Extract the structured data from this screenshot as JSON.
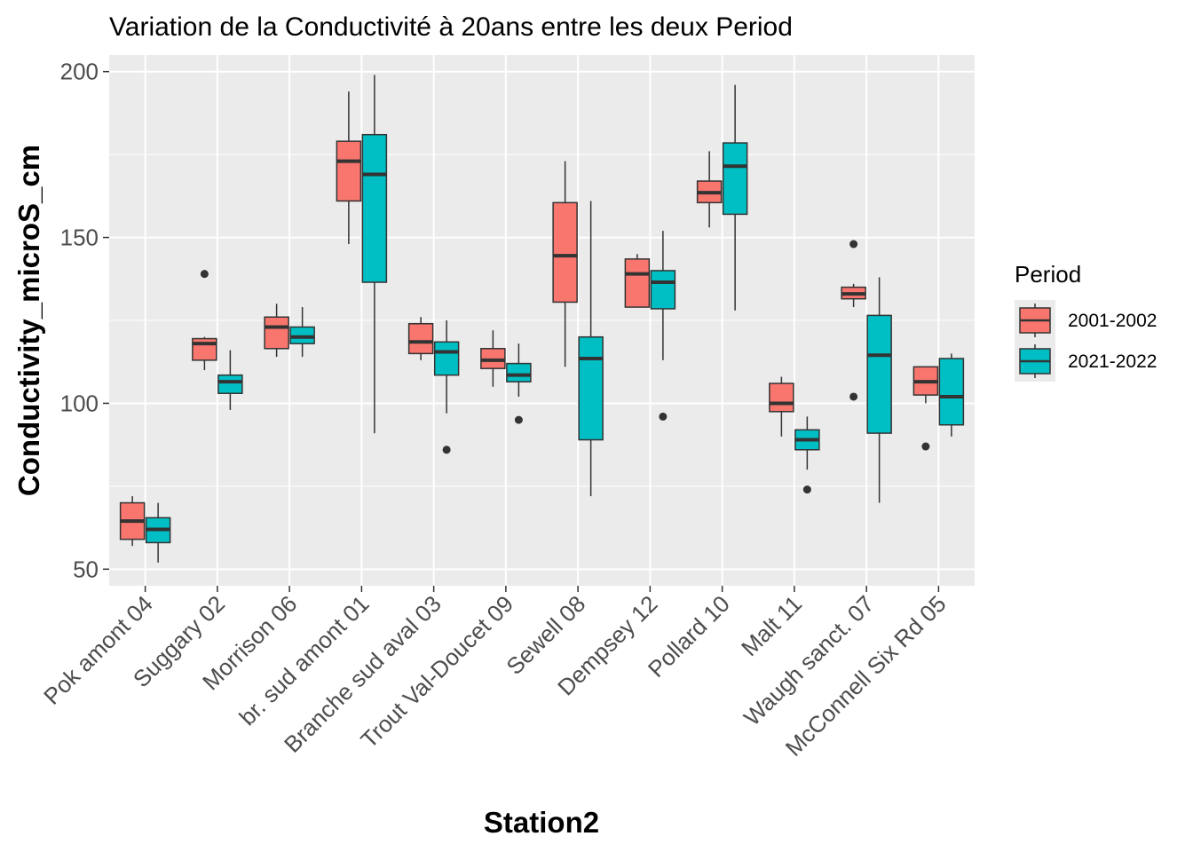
{
  "chart_data": {
    "type": "box",
    "title": "Variation  de la Conductivité à 20ans entre les deux Period",
    "xlabel": "Station2",
    "ylabel": "Conductivity_microS_cm",
    "ylim": [
      45,
      205
    ],
    "yticks": [
      50,
      100,
      150,
      200
    ],
    "grid": true,
    "legend": {
      "title": "Period",
      "position": "right"
    },
    "colors": {
      "2001-2002": "#f8766d",
      "2021-2022": "#00bfc4"
    },
    "categories": [
      "Pok amont 04",
      "Suggary 02",
      "Morrison 06",
      "br. sud amont 01",
      "Branche sud aval 03",
      "Trout Val-Doucet 09",
      "Sewell 08",
      "Dempsey 12",
      "Pollard 10",
      "Malt 11",
      "Waugh sanct. 07",
      "McConnell Six Rd 05"
    ],
    "series": [
      {
        "name": "2001-2002",
        "boxes": [
          {
            "whisker_low": 57,
            "q1": 59,
            "median": 64.5,
            "q3": 70,
            "whisker_high": 72,
            "outliers": []
          },
          {
            "whisker_low": 110,
            "q1": 113,
            "median": 118,
            "q3": 119.5,
            "whisker_high": 120,
            "outliers": [
              139
            ]
          },
          {
            "whisker_low": 114,
            "q1": 116.5,
            "median": 123,
            "q3": 126,
            "whisker_high": 130,
            "outliers": []
          },
          {
            "whisker_low": 148,
            "q1": 161,
            "median": 173,
            "q3": 179,
            "whisker_high": 194,
            "outliers": []
          },
          {
            "whisker_low": 113,
            "q1": 115,
            "median": 118.5,
            "q3": 124,
            "whisker_high": 126,
            "outliers": []
          },
          {
            "whisker_low": 105,
            "q1": 110.5,
            "median": 113,
            "q3": 116.5,
            "whisker_high": 122,
            "outliers": []
          },
          {
            "whisker_low": 111,
            "q1": 130.5,
            "median": 144.5,
            "q3": 160.5,
            "whisker_high": 173,
            "outliers": []
          },
          {
            "whisker_low": 129,
            "q1": 129,
            "median": 139,
            "q3": 143.5,
            "whisker_high": 145,
            "outliers": []
          },
          {
            "whisker_low": 153,
            "q1": 160.5,
            "median": 163.5,
            "q3": 167,
            "whisker_high": 176,
            "outliers": []
          },
          {
            "whisker_low": 90,
            "q1": 97.5,
            "median": 100,
            "q3": 106,
            "whisker_high": 108,
            "outliers": []
          },
          {
            "whisker_low": 129,
            "q1": 131.5,
            "median": 133,
            "q3": 135,
            "whisker_high": 136,
            "outliers": [
              148,
              102
            ]
          },
          {
            "whisker_low": 100,
            "q1": 102.5,
            "median": 106.5,
            "q3": 111,
            "whisker_high": 111,
            "outliers": [
              87
            ]
          }
        ]
      },
      {
        "name": "2021-2022",
        "boxes": [
          {
            "whisker_low": 52,
            "q1": 58,
            "median": 62,
            "q3": 65.5,
            "whisker_high": 70,
            "outliers": []
          },
          {
            "whisker_low": 98,
            "q1": 103,
            "median": 106.5,
            "q3": 108.5,
            "whisker_high": 116,
            "outliers": []
          },
          {
            "whisker_low": 114,
            "q1": 118,
            "median": 120,
            "q3": 123,
            "whisker_high": 129,
            "outliers": []
          },
          {
            "whisker_low": 91,
            "q1": 136.5,
            "median": 169,
            "q3": 181,
            "whisker_high": 199,
            "outliers": []
          },
          {
            "whisker_low": 97,
            "q1": 108.5,
            "median": 115.5,
            "q3": 118.5,
            "whisker_high": 125,
            "outliers": [
              86
            ]
          },
          {
            "whisker_low": 102,
            "q1": 106.5,
            "median": 108.5,
            "q3": 112,
            "whisker_high": 118,
            "outliers": [
              95
            ]
          },
          {
            "whisker_low": 72,
            "q1": 89,
            "median": 113.5,
            "q3": 120,
            "whisker_high": 161,
            "outliers": []
          },
          {
            "whisker_low": 113,
            "q1": 128.5,
            "median": 136.5,
            "q3": 140,
            "whisker_high": 152,
            "outliers": [
              96
            ]
          },
          {
            "whisker_low": 128,
            "q1": 157,
            "median": 171.5,
            "q3": 178.5,
            "whisker_high": 196,
            "outliers": []
          },
          {
            "whisker_low": 80,
            "q1": 86,
            "median": 89,
            "q3": 92,
            "whisker_high": 96,
            "outliers": [
              74
            ]
          },
          {
            "whisker_low": 70,
            "q1": 91,
            "median": 114.5,
            "q3": 126.5,
            "whisker_high": 138,
            "outliers": []
          },
          {
            "whisker_low": 90,
            "q1": 93.5,
            "median": 102,
            "q3": 113.5,
            "whisker_high": 115,
            "outliers": []
          }
        ]
      }
    ]
  }
}
